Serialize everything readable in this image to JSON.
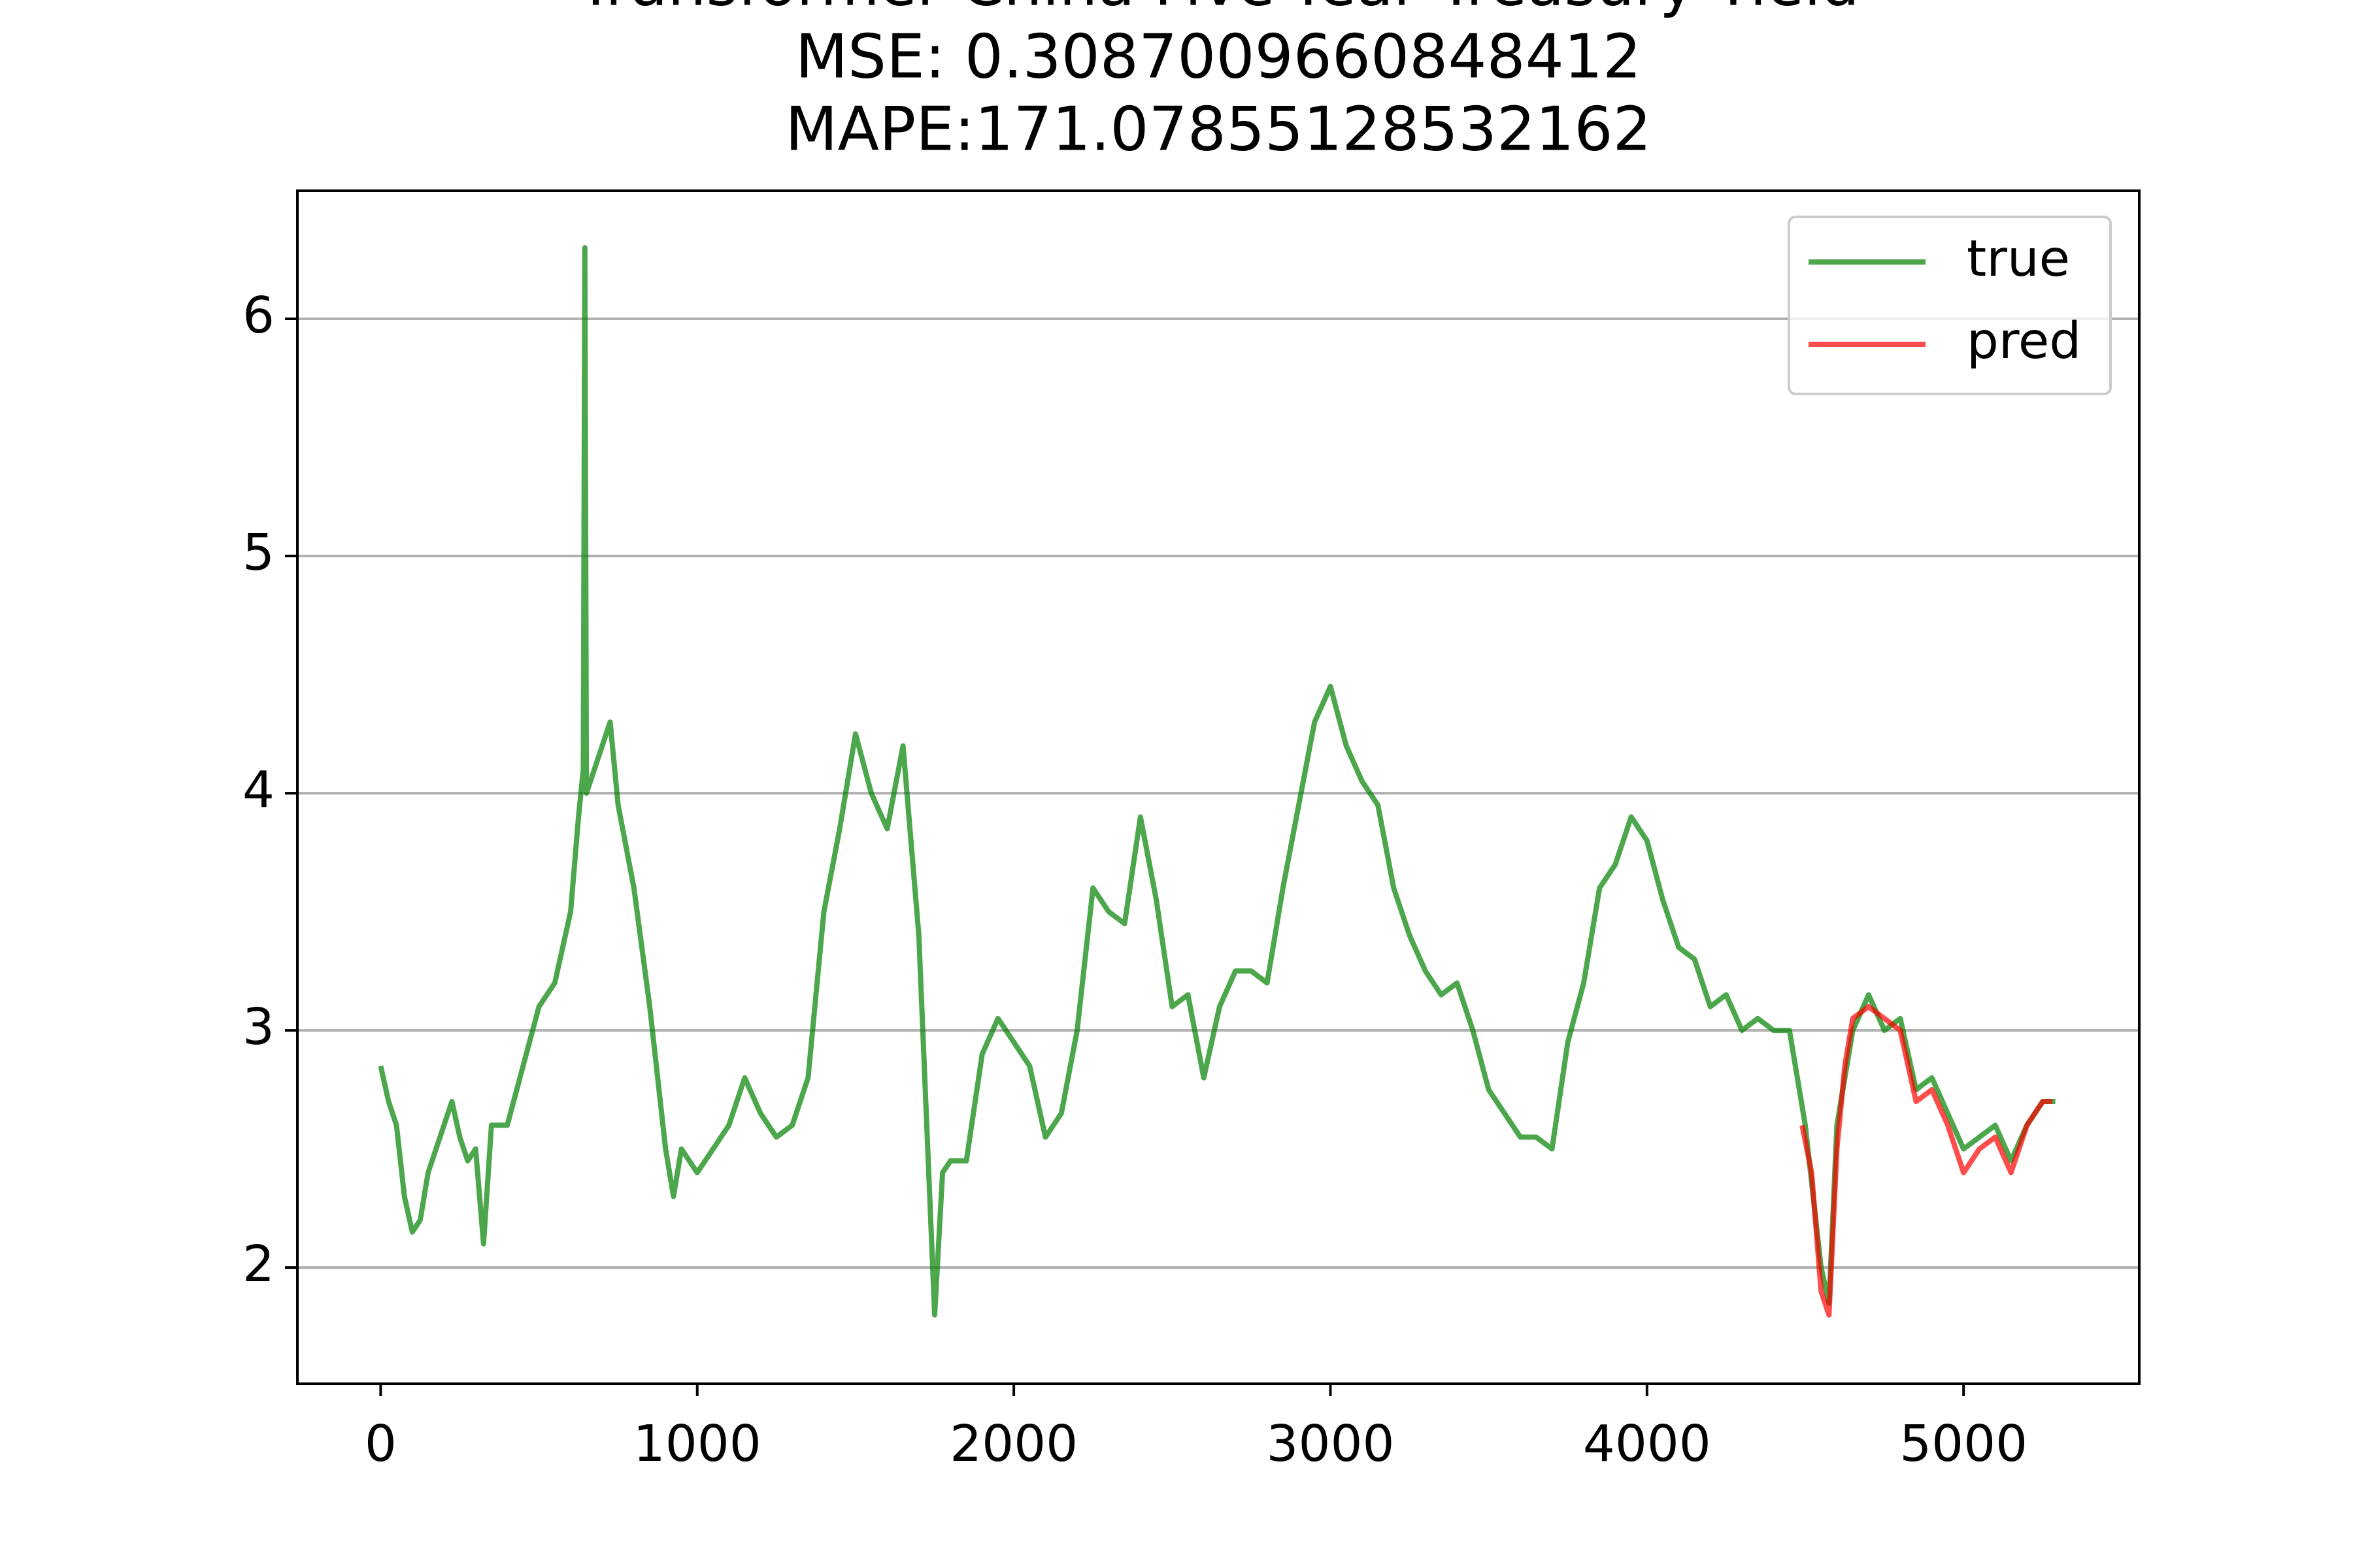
{
  "chart_data": {
    "type": "line",
    "title": [
      "Transformer China Five-Year Treasury Yield",
      "MSE: 0.3087009660848412",
      "MAPE:171.07855128532162"
    ],
    "series": [
      {
        "name": "true",
        "color": "#008000",
        "x": [
          0,
          25,
          50,
          75,
          100,
          125,
          150,
          175,
          200,
          225,
          250,
          275,
          300,
          325,
          350,
          400,
          450,
          500,
          550,
          600,
          625,
          640,
          645,
          650,
          700,
          725,
          750,
          800,
          850,
          900,
          925,
          950,
          1000,
          1050,
          1100,
          1150,
          1200,
          1250,
          1300,
          1350,
          1400,
          1450,
          1500,
          1550,
          1600,
          1650,
          1700,
          1725,
          1750,
          1775,
          1800,
          1850,
          1900,
          1950,
          2000,
          2050,
          2100,
          2150,
          2200,
          2250,
          2300,
          2350,
          2400,
          2450,
          2500,
          2550,
          2600,
          2650,
          2700,
          2750,
          2800,
          2850,
          2900,
          2950,
          3000,
          3050,
          3100,
          3150,
          3200,
          3250,
          3300,
          3350,
          3400,
          3450,
          3500,
          3550,
          3600,
          3650,
          3700,
          3750,
          3800,
          3850,
          3900,
          3950,
          4000,
          4050,
          4100,
          4150,
          4200,
          4250,
          4300,
          4350,
          4400,
          4450,
          4500,
          4550,
          4575,
          4600,
          4650,
          4700,
          4750,
          4800,
          4850,
          4900,
          4950,
          5000,
          5050,
          5100,
          5150,
          5200,
          5250,
          5290
        ],
        "values": [
          2.85,
          2.7,
          2.6,
          2.3,
          2.15,
          2.2,
          2.4,
          2.5,
          2.6,
          2.7,
          2.55,
          2.45,
          2.5,
          2.1,
          2.6,
          2.6,
          2.85,
          3.1,
          3.2,
          3.5,
          3.9,
          4.1,
          6.3,
          4.0,
          4.2,
          4.3,
          3.95,
          3.6,
          3.1,
          2.5,
          2.3,
          2.5,
          2.4,
          2.5,
          2.6,
          2.8,
          2.65,
          2.55,
          2.6,
          2.8,
          3.5,
          3.85,
          4.25,
          4.0,
          3.85,
          4.2,
          3.4,
          2.6,
          1.8,
          2.4,
          2.45,
          2.45,
          2.9,
          3.05,
          2.95,
          2.85,
          2.55,
          2.65,
          3.0,
          3.6,
          3.5,
          3.45,
          3.9,
          3.55,
          3.1,
          3.15,
          2.8,
          3.1,
          3.25,
          3.25,
          3.2,
          3.6,
          3.95,
          4.3,
          4.45,
          4.2,
          4.05,
          3.95,
          3.6,
          3.4,
          3.25,
          3.15,
          3.2,
          3.0,
          2.75,
          2.65,
          2.55,
          2.55,
          2.5,
          2.95,
          3.2,
          3.6,
          3.7,
          3.9,
          3.8,
          3.55,
          3.35,
          3.3,
          3.1,
          3.15,
          3.0,
          3.05,
          3.0,
          3.0,
          2.6,
          2.0,
          1.85,
          2.6,
          3.0,
          3.15,
          3.0,
          3.05,
          2.75,
          2.8,
          2.65,
          2.5,
          2.55,
          2.6,
          2.45,
          2.6,
          2.7,
          2.7
        ]
      },
      {
        "name": "pred",
        "color": "#ff0000",
        "x": [
          4490,
          4520,
          4550,
          4575,
          4600,
          4625,
          4650,
          4700,
          4750,
          4800,
          4850,
          4900,
          4950,
          5000,
          5050,
          5100,
          5150,
          5200,
          5250,
          5280
        ],
        "values": [
          2.6,
          2.4,
          1.9,
          1.8,
          2.5,
          2.85,
          3.05,
          3.1,
          3.05,
          3.0,
          2.7,
          2.75,
          2.6,
          2.4,
          2.5,
          2.55,
          2.4,
          2.6,
          2.7,
          2.7
        ]
      }
    ],
    "xlim": [
      -263,
      5555
    ],
    "ylim": [
      1.51,
      6.54
    ],
    "xticks": [
      0,
      1000,
      2000,
      3000,
      4000,
      5000
    ],
    "yticks": [
      2,
      3,
      4,
      5,
      6
    ],
    "grid": "y",
    "legend": "upper right"
  }
}
